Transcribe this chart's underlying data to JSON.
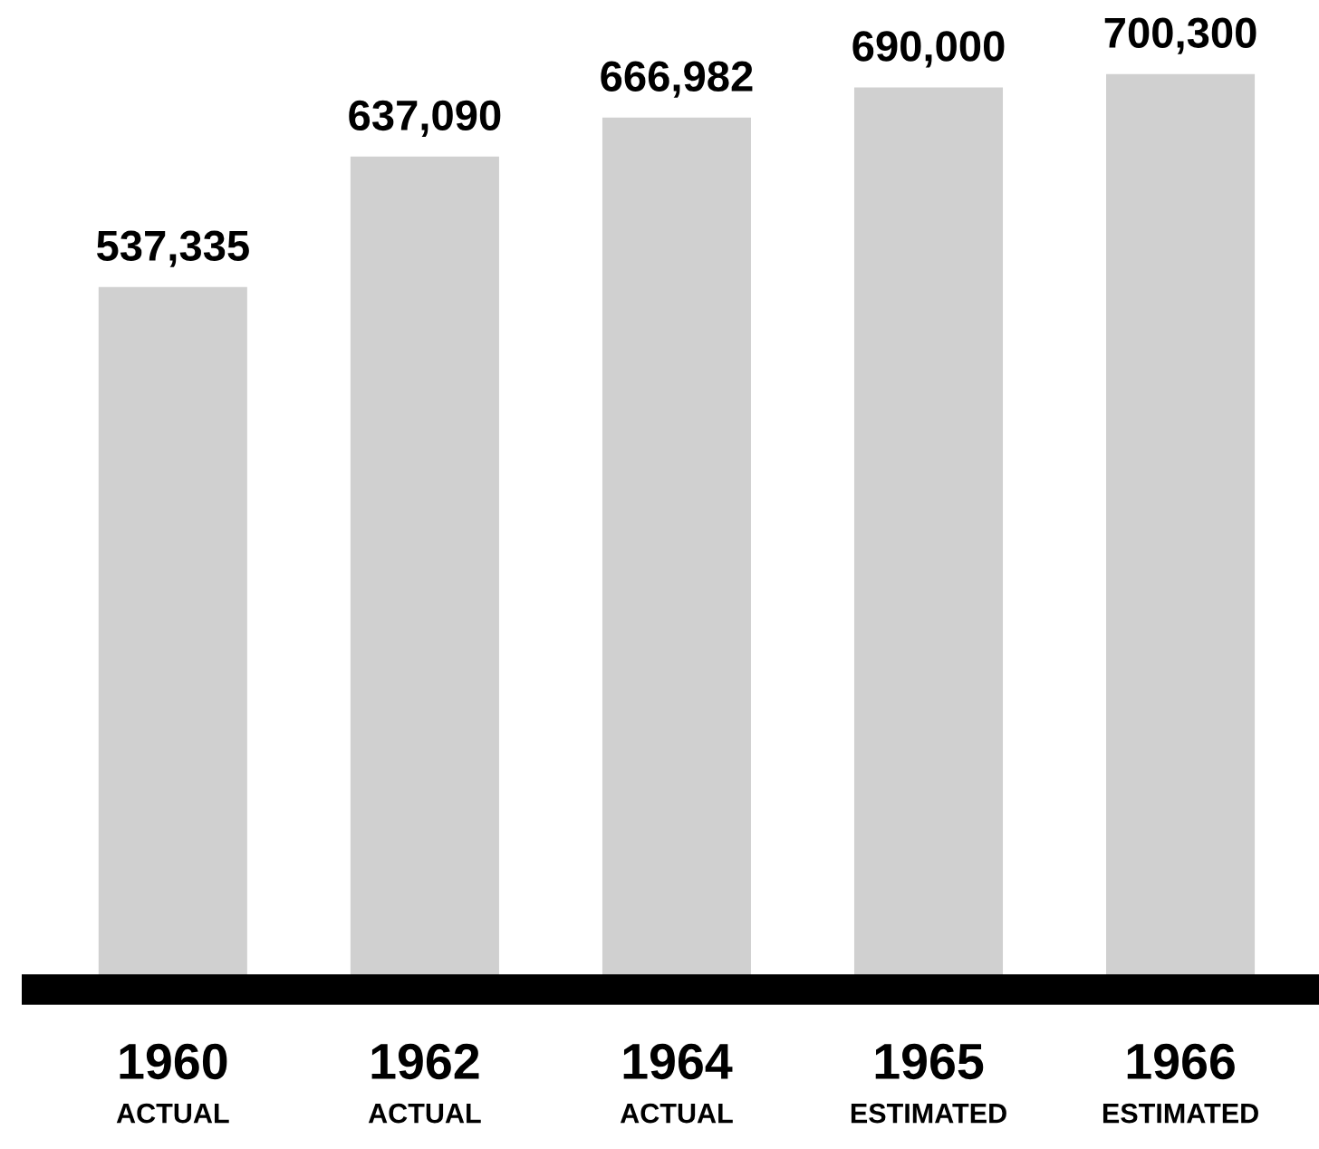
{
  "chart_data": {
    "type": "bar",
    "categories": [
      "1960\nACTUAL",
      "1962\nACTUAL",
      "1964\nACTUAL",
      "1965\nESTIMATED",
      "1966\nESTIMATED"
    ],
    "values": [
      537335,
      637090,
      666982,
      690000,
      700300
    ],
    "value_labels": [
      "537,335",
      "637,090",
      "666,982",
      "690,000",
      "700,300"
    ],
    "color": "#d0d0d0",
    "tick_labels": "x"
  }
}
